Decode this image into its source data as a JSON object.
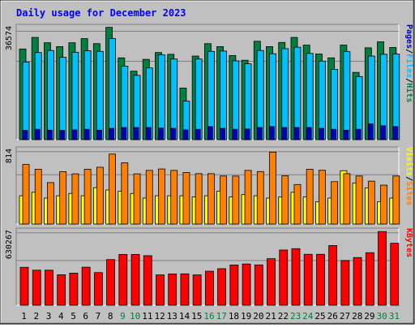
{
  "title": "Daily usage for December 2023",
  "colors": {
    "background": "#C0C0C0",
    "plot_bg": "#C0C0C0",
    "title": "#0000FF",
    "hits": "#008040",
    "files": "#00C0FF",
    "pages": "#0000C0",
    "visits": "#FFFF00",
    "sites": "#FF8000",
    "kbytes": "#FF0000",
    "weekday_label": "#000000",
    "weekend_label": "#008040"
  },
  "chart_data": [
    {
      "type": "bar",
      "panel": "hits-files-pages",
      "max_label": "36574",
      "ylim": [
        0,
        36574
      ],
      "legend": [
        "Hits",
        "/",
        "Files",
        "/",
        "Pages"
      ],
      "categories": [
        "1",
        "2",
        "3",
        "4",
        "5",
        "6",
        "7",
        "8",
        "9",
        "10",
        "11",
        "12",
        "13",
        "14",
        "15",
        "16",
        "17",
        "18",
        "19",
        "20",
        "21",
        "22",
        "23",
        "24",
        "25",
        "26",
        "27",
        "28",
        "29",
        "30",
        "31"
      ],
      "weekend_days": [
        "9",
        "10",
        "16",
        "17",
        "23",
        "24",
        "30",
        "31"
      ],
      "series": [
        {
          "name": "Hits",
          "values": [
            30600,
            34500,
            32700,
            31400,
            32700,
            34100,
            32400,
            37900,
            27600,
            23100,
            27100,
            29400,
            28800,
            17400,
            28200,
            32400,
            31400,
            28400,
            26800,
            33200,
            31400,
            32800,
            34500,
            31900,
            28900,
            27600,
            31900,
            22700,
            31000,
            33000,
            31100
          ]
        },
        {
          "name": "Files",
          "values": [
            26200,
            29400,
            30100,
            27800,
            29500,
            30000,
            29800,
            34100,
            24800,
            21700,
            24200,
            28600,
            27200,
            13000,
            27200,
            29800,
            29900,
            26600,
            25600,
            30100,
            29000,
            30700,
            31200,
            29100,
            26500,
            23700,
            29700,
            21300,
            28200,
            28800,
            28900
          ]
        },
        {
          "name": "Pages",
          "values": [
            3100,
            3500,
            3200,
            3100,
            3300,
            3500,
            3200,
            3800,
            4100,
            4100,
            4100,
            3900,
            3800,
            3300,
            3500,
            4400,
            3800,
            3500,
            3600,
            4100,
            4400,
            4100,
            4100,
            4100,
            3800,
            3500,
            3200,
            3500,
            5300,
            4700,
            4400
          ]
        }
      ]
    },
    {
      "type": "bar",
      "panel": "visits-sites",
      "max_label": "814",
      "ylim": [
        0,
        814
      ],
      "legend": [
        "Sites",
        "/",
        "Visits"
      ],
      "categories": [
        "1",
        "2",
        "3",
        "4",
        "5",
        "6",
        "7",
        "8",
        "9",
        "10",
        "11",
        "12",
        "13",
        "14",
        "15",
        "16",
        "17",
        "18",
        "19",
        "20",
        "21",
        "22",
        "23",
        "24",
        "25",
        "26",
        "27",
        "28",
        "29",
        "30",
        "31"
      ],
      "series": [
        {
          "name": "Visits",
          "values": [
            318,
            357,
            292,
            318,
            344,
            318,
            409,
            383,
            370,
            344,
            292,
            318,
            318,
            318,
            305,
            318,
            370,
            305,
            331,
            318,
            292,
            304,
            357,
            305,
            252,
            292,
            599,
            462,
            407,
            252,
            292
          ]
        },
        {
          "name": "Sites",
          "values": [
            669,
            616,
            466,
            589,
            564,
            616,
            638,
            786,
            688,
            564,
            603,
            619,
            603,
            579,
            566,
            566,
            540,
            539,
            603,
            590,
            808,
            542,
            444,
            616,
            604,
            476,
            566,
            540,
            482,
            437,
            540
          ]
        }
      ]
    },
    {
      "type": "bar",
      "panel": "kbytes",
      "max_label": "630267",
      "ylim": [
        0,
        630267
      ],
      "legend": [
        "KBytes"
      ],
      "categories": [
        "1",
        "2",
        "3",
        "4",
        "5",
        "6",
        "7",
        "8",
        "9",
        "10",
        "11",
        "12",
        "13",
        "14",
        "15",
        "16",
        "17",
        "18",
        "19",
        "20",
        "21",
        "22",
        "23",
        "24",
        "25",
        "26",
        "27",
        "28",
        "29",
        "30",
        "31"
      ],
      "series": [
        {
          "name": "KBytes",
          "values": [
            330000,
            305000,
            305000,
            265000,
            279000,
            331000,
            284000,
            397000,
            442000,
            442000,
            431000,
            264000,
            272000,
            273000,
            264000,
            296000,
            318000,
            350000,
            359000,
            351000,
            405000,
            480000,
            492000,
            443000,
            443000,
            519000,
            389000,
            415000,
            457000,
            641000,
            539000
          ]
        }
      ]
    }
  ]
}
